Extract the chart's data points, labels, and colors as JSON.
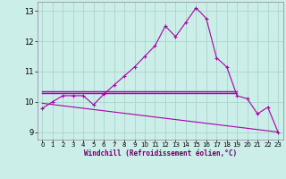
{
  "xlabel": "Windchill (Refroidissement éolien,°C)",
  "background_color": "#cceee8",
  "grid_color": "#aad4ce",
  "line_color": "#aa00aa",
  "xlim": [
    -0.5,
    23.5
  ],
  "ylim": [
    8.75,
    13.3
  ],
  "yticks": [
    9,
    10,
    11,
    12,
    13
  ],
  "xticks": [
    0,
    1,
    2,
    3,
    4,
    5,
    6,
    7,
    8,
    9,
    10,
    11,
    12,
    13,
    14,
    15,
    16,
    17,
    18,
    19,
    20,
    21,
    22,
    23
  ],
  "line1_x": [
    0,
    1,
    2,
    3,
    4,
    5,
    6,
    7,
    8,
    9,
    10,
    11,
    12,
    13,
    14,
    15,
    16,
    17,
    18,
    19,
    20,
    21,
    22,
    23
  ],
  "line1_y": [
    9.78,
    10.0,
    10.2,
    10.2,
    10.2,
    9.9,
    10.25,
    10.55,
    10.85,
    11.15,
    11.5,
    11.85,
    12.5,
    12.15,
    12.62,
    13.1,
    12.75,
    11.45,
    11.15,
    10.2,
    10.1,
    9.6,
    9.82,
    9.0
  ],
  "line2_x": [
    0,
    19
  ],
  "line2_y": [
    10.35,
    10.35
  ],
  "line3_x": [
    0,
    19
  ],
  "line3_y": [
    10.28,
    10.28
  ],
  "line4_x": [
    0,
    23
  ],
  "line4_y": [
    9.95,
    9.0
  ]
}
